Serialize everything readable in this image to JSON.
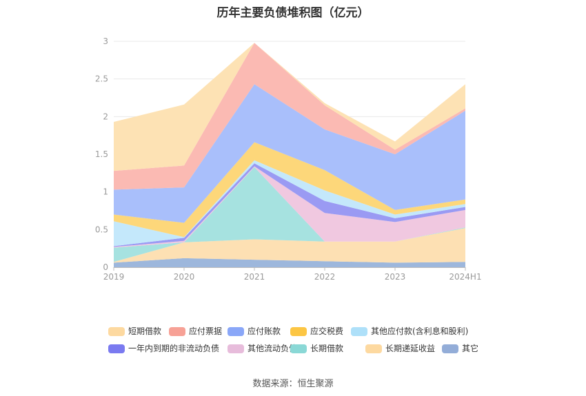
{
  "chart_data": {
    "type": "area",
    "title": "历年主要负债堆积图（亿元）",
    "stacked": true,
    "categories": [
      "2019",
      "2020",
      "2021",
      "2022",
      "2023",
      "2024H1"
    ],
    "ylim": [
      0,
      3
    ],
    "yticks": [
      "0",
      "0.5",
      "1",
      "1.5",
      "2",
      "2.5",
      "3"
    ],
    "grid": true,
    "legend_position": "bottom",
    "series": [
      {
        "name": "其它",
        "color": "#9db7dc",
        "values": [
          0.06,
          0.12,
          0.1,
          0.08,
          0.06,
          0.07
        ]
      },
      {
        "name": "长期递延收益",
        "color": "#fde0b3",
        "values": [
          0.01,
          0.21,
          0.27,
          0.26,
          0.28,
          0.45
        ]
      },
      {
        "name": "长期借款",
        "color": "#a6e2e0",
        "values": [
          0.19,
          0.0,
          0.96,
          0.0,
          0.0,
          0.01
        ]
      },
      {
        "name": "其他流动负债",
        "color": "#f0c8e0",
        "values": [
          0.01,
          0.02,
          0.01,
          0.38,
          0.26,
          0.23
        ]
      },
      {
        "name": "一年内到期的非流动负债",
        "color": "#9a9af3",
        "values": [
          0.01,
          0.04,
          0.04,
          0.16,
          0.05,
          0.04
        ]
      },
      {
        "name": "其他应付款(含利息和股利)",
        "color": "#c4e8fb",
        "values": [
          0.33,
          0.01,
          0.04,
          0.14,
          0.05,
          0.04
        ]
      },
      {
        "name": "应交税费",
        "color": "#fdd77a",
        "values": [
          0.09,
          0.19,
          0.24,
          0.27,
          0.06,
          0.06
        ]
      },
      {
        "name": "应付账款",
        "color": "#a9bffb",
        "values": [
          0.33,
          0.47,
          0.77,
          0.54,
          0.74,
          1.18
        ]
      },
      {
        "name": "应付票据",
        "color": "#fbbab3",
        "values": [
          0.25,
          0.29,
          0.55,
          0.32,
          0.06,
          0.03
        ]
      },
      {
        "name": "短期借款",
        "color": "#fde2b4",
        "values": [
          0.65,
          0.81,
          0.0,
          0.03,
          0.11,
          0.32
        ]
      }
    ],
    "legend_colors": [
      "#fdd9a0",
      "#f7a196",
      "#8aa7f8",
      "#fcc644",
      "#aee0f9",
      "#7a7af0",
      "#e7bcdb",
      "#8ad8d6",
      "#fdd9a0",
      "#93add8"
    ]
  },
  "source": "数据来源：恒生聚源"
}
